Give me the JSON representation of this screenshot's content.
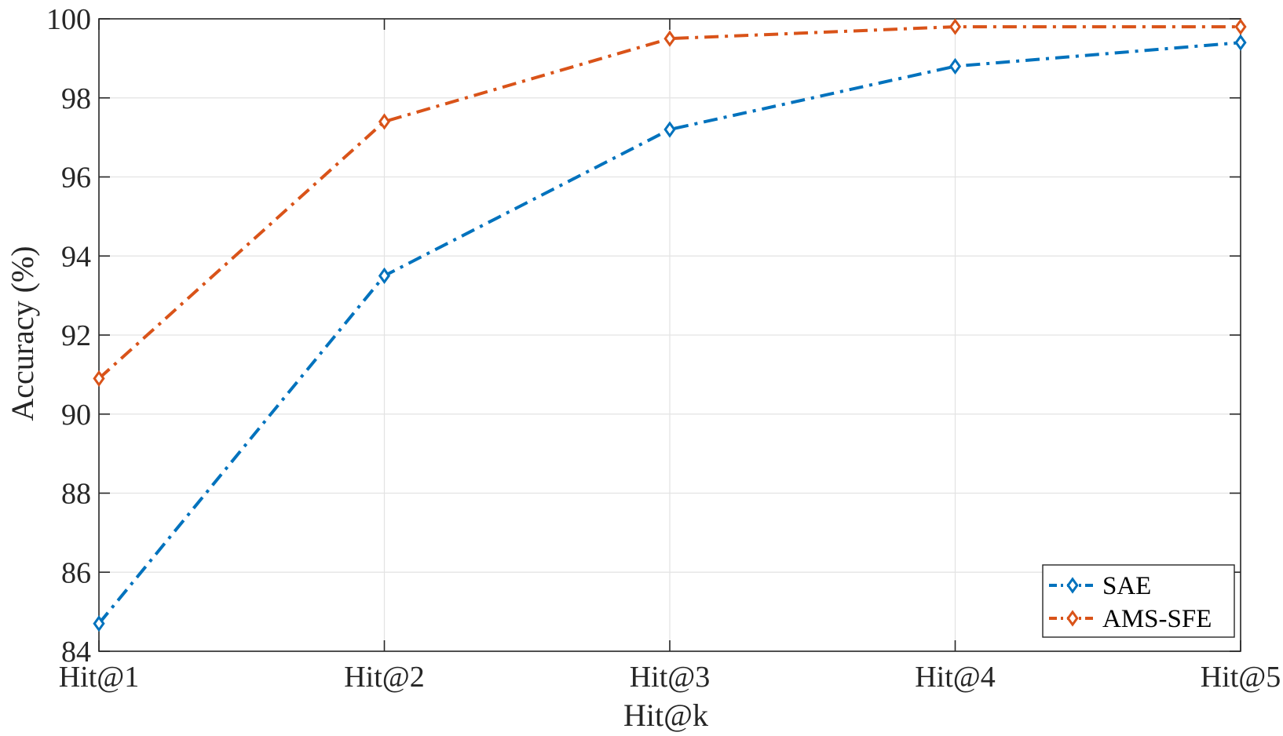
{
  "chart_data": {
    "type": "line",
    "title": "",
    "xlabel": "Hit@k",
    "ylabel": "Accuracy (%)",
    "categories": [
      "Hit@1",
      "Hit@2",
      "Hit@3",
      "Hit@4",
      "Hit@5"
    ],
    "ylim": [
      84,
      100
    ],
    "yticks": [
      84,
      86,
      88,
      90,
      92,
      94,
      96,
      98,
      100
    ],
    "grid": true,
    "legend_position": "bottom-right",
    "series": [
      {
        "name": "SAE",
        "color": "#0072BD",
        "marker": "diamond",
        "line_style": "dash-dot",
        "values": [
          84.7,
          93.5,
          97.2,
          98.8,
          99.4
        ]
      },
      {
        "name": "AMS-SFE",
        "color": "#D95319",
        "marker": "diamond",
        "line_style": "dash-dot",
        "values": [
          90.9,
          97.4,
          99.5,
          99.8,
          99.8
        ]
      }
    ]
  }
}
